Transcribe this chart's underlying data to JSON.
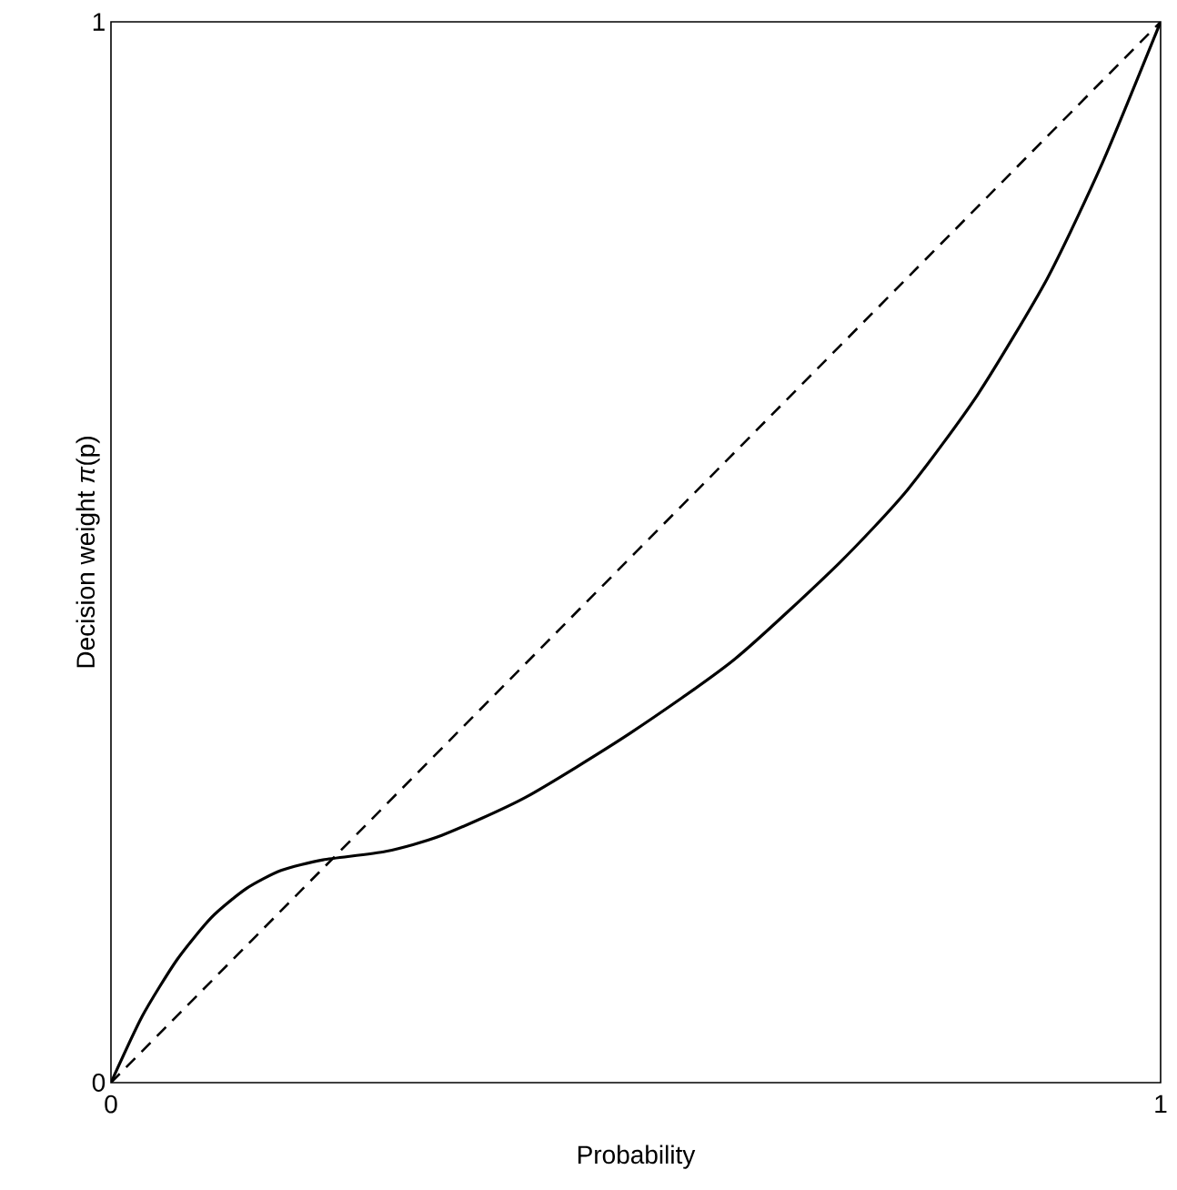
{
  "chart_data": {
    "type": "line",
    "xlabel": "Probability",
    "ylabel": "Decision weight *π*(p)",
    "xlim": [
      0,
      1
    ],
    "ylim": [
      0,
      1
    ],
    "xticks": [
      0,
      1
    ],
    "yticks": [
      0,
      1
    ],
    "grid": false,
    "marker": "none",
    "series": [
      {
        "color": "#000000",
        "line_style": "solid",
        "x": [
          0,
          0.03,
          0.063,
          0.096,
          0.129,
          0.162,
          0.202,
          0.262,
          0.315,
          0.395,
          0.494,
          0.594,
          0.693,
          0.759,
          0.826,
          0.892,
          0.945,
          1.0
        ],
        "values": [
          0,
          0.063,
          0.116,
          0.156,
          0.183,
          0.2,
          0.21,
          0.218,
          0.233,
          0.269,
          0.329,
          0.399,
          0.489,
          0.559,
          0.649,
          0.758,
          0.868,
          1.0
        ]
      },
      {
        "color": "#000000",
        "line_style": "dashed",
        "x": [
          0,
          1
        ],
        "values": [
          0,
          1
        ]
      }
    ]
  }
}
